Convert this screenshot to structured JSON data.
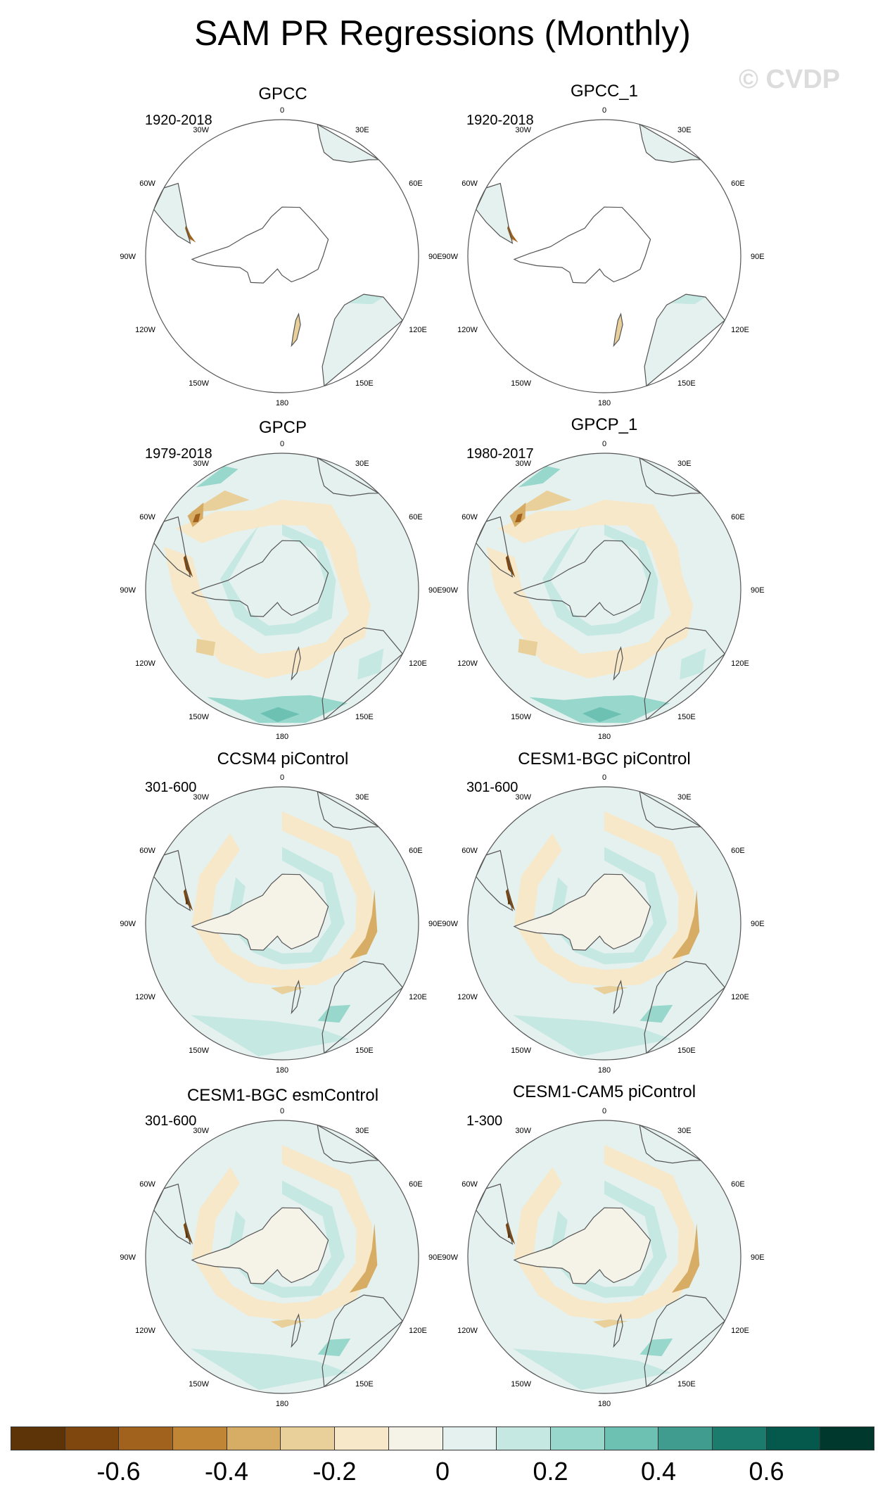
{
  "title": "SAM PR Regressions (Monthly)",
  "watermark": "© CVDP",
  "lon_labels": [
    "0",
    "30E",
    "60E",
    "90E",
    "120E",
    "150E",
    "180",
    "150W",
    "120W",
    "90W",
    "60W",
    "30W"
  ],
  "panels": [
    {
      "title": "GPCC",
      "period": "1920-2018",
      "style": "sparse"
    },
    {
      "title": "GPCC_1",
      "period": "1920-2018",
      "style": "sparse"
    },
    {
      "title": "GPCP",
      "period": "1979-2018",
      "style": "obs"
    },
    {
      "title": "GPCP_1",
      "period": "1980-2017",
      "style": "obs"
    },
    {
      "title": "CCSM4 piControl",
      "period": "301-600",
      "style": "model"
    },
    {
      "title": "CESM1-BGC piControl",
      "period": "301-600",
      "style": "model"
    },
    {
      "title": "CESM1-BGC esmControl",
      "period": "301-600",
      "style": "model"
    },
    {
      "title": "CESM1-CAM5 piControl",
      "period": "1-300",
      "style": "model"
    }
  ],
  "colorbar": {
    "colors": [
      "#5c3407",
      "#7f470e",
      "#a0621c",
      "#c08535",
      "#d7ad66",
      "#e9d09a",
      "#f6e8c8",
      "#f5f2e8",
      "#e5f1ef",
      "#c6e8e2",
      "#97d7cc",
      "#6dc1b3",
      "#3f9c8e",
      "#1b7b6c",
      "#04594c",
      "#00382e"
    ],
    "labels": [
      "-0.6",
      "-0.4",
      "-0.2",
      "0",
      "0.2",
      "0.4",
      "0.6"
    ]
  }
}
